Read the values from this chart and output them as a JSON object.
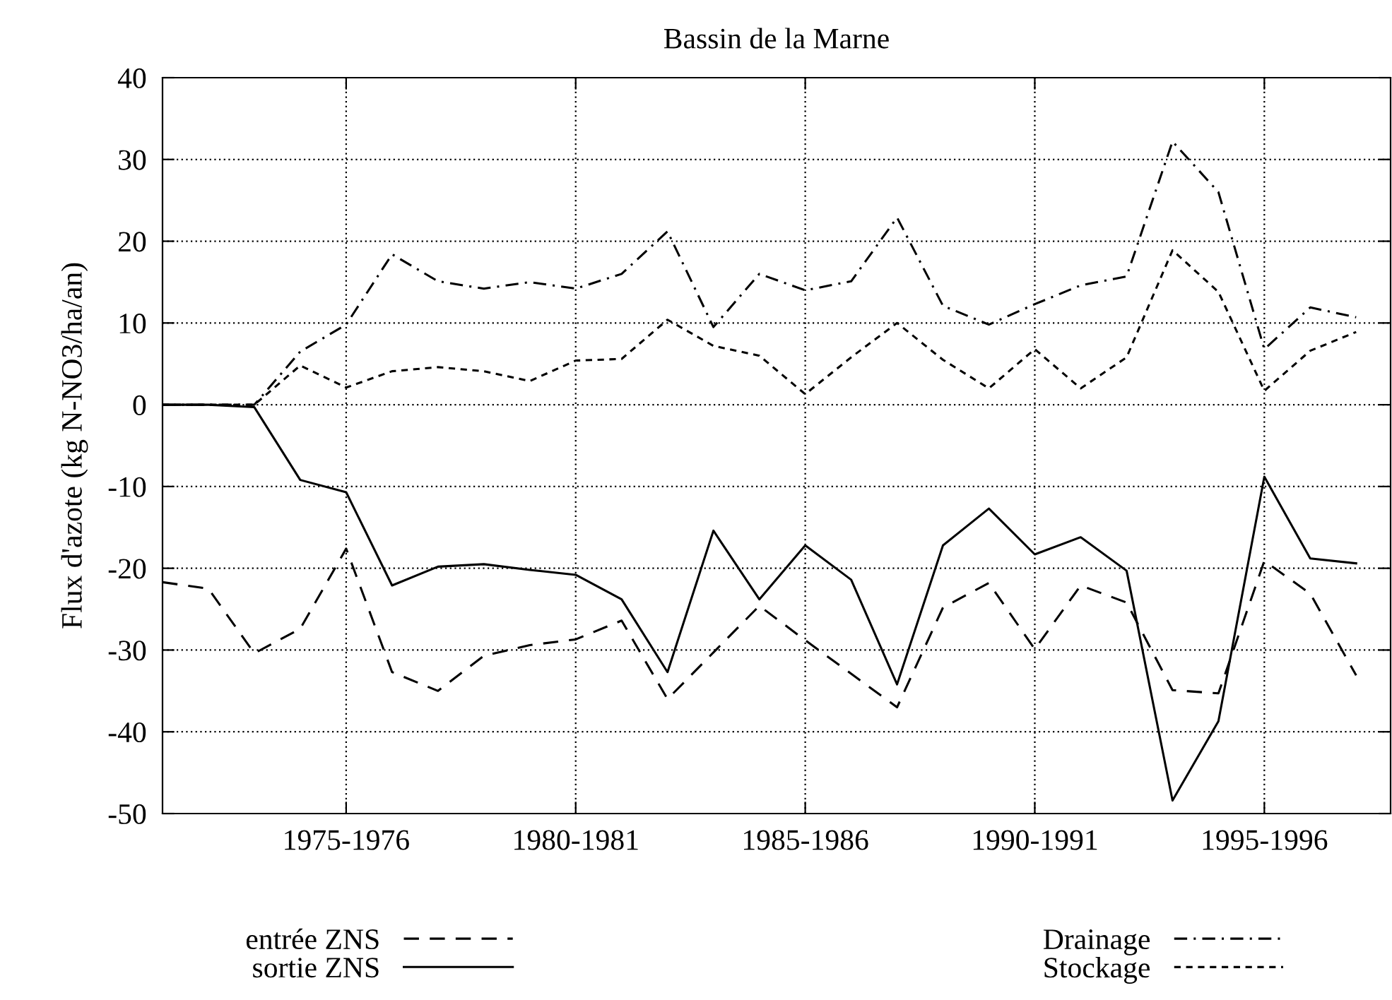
{
  "chart_data": {
    "type": "line",
    "title": "Bassin de la Marne",
    "ylabel": "Flux d'azote (kg N-NO3/ha/an)",
    "categories": [
      null,
      null,
      null,
      null,
      "1975-1976",
      null,
      null,
      null,
      null,
      "1980-1981",
      null,
      null,
      null,
      null,
      "1985-1986",
      null,
      null,
      null,
      null,
      "1990-1991",
      null,
      null,
      null,
      null,
      "1995-1996",
      null,
      null
    ],
    "series": [
      {
        "name": "entrée ZNS",
        "color": "#000000",
        "line_style": "dashed",
        "values": [
          -21.7,
          -22.5,
          -30.4,
          -27.4,
          -17.6,
          -32.7,
          -35.0,
          -30.7,
          -29.4,
          -28.7,
          -26.4,
          -36.0,
          -30.3,
          -24.6,
          -28.8,
          -32.9,
          -37.0,
          -24.8,
          -21.8,
          -29.9,
          -22.1,
          -24.2,
          -34.9,
          -35.3,
          -19.1,
          -23.1,
          -33.1
        ]
      },
      {
        "name": "sortie ZNS",
        "color": "#000000",
        "line_style": "solid",
        "values": [
          0,
          0,
          -0.3,
          -9.2,
          -10.7,
          -22.1,
          -19.8,
          -19.5,
          -20.2,
          -20.8,
          -23.8,
          -32.7,
          -15.4,
          -23.8,
          -17.2,
          -21.4,
          -34.2,
          -17.2,
          -12.7,
          -18.3,
          -16.2,
          -20.3,
          -48.4,
          -38.7,
          -8.8,
          -18.8,
          -19.4
        ]
      },
      {
        "name": "Drainage",
        "color": "#000000",
        "line_style": "dashdot",
        "values": [
          0,
          0,
          0,
          6.5,
          9.8,
          18.4,
          15.1,
          14.2,
          15.0,
          14.2,
          16.0,
          21.2,
          9.5,
          16.0,
          14.0,
          15.1,
          22.9,
          12.1,
          9.8,
          12.3,
          14.6,
          15.7,
          32.2,
          26.0,
          6.8,
          11.9,
          10.7
        ]
      },
      {
        "name": "Stockage",
        "color": "#000000",
        "line_style": "shortdashed",
        "values": [
          0,
          0,
          0,
          4.8,
          2.1,
          4.1,
          4.6,
          4.1,
          2.9,
          5.4,
          5.6,
          10.4,
          7.2,
          6.0,
          1.3,
          5.8,
          10.0,
          5.5,
          2.0,
          6.8,
          2.0,
          5.8,
          18.9,
          13.8,
          1.7,
          6.6,
          8.9
        ]
      }
    ],
    "ylim": [
      -50,
      40
    ],
    "yticks": [
      -50,
      -40,
      -30,
      -20,
      -10,
      0,
      10,
      20,
      30,
      40
    ],
    "grid": true,
    "legend": "bottom"
  }
}
